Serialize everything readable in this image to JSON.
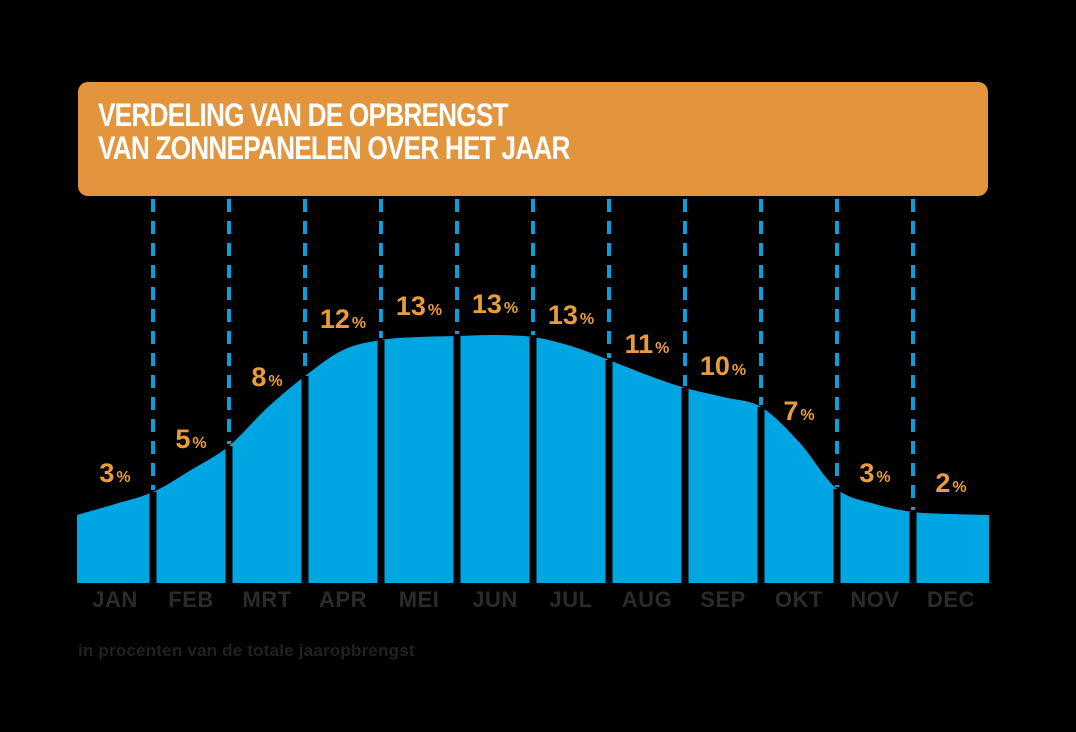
{
  "header": {
    "title_line1": "VERDELING VAN DE OPBRENGST",
    "title_line2": "VAN ZONNEPANELEN OVER HET JAAR"
  },
  "footnote": "in procenten van de totale jaaropbrengst",
  "colors": {
    "background": "#000000",
    "header_bg": "#E2953C",
    "title_text": "#FFFFFF",
    "area_blue": "#00A6E2",
    "dash_blue": "#0C9EDB",
    "label_orange": "#E99C3A",
    "month_text": "#2B2B28",
    "footnote_text": "#21211F"
  },
  "chart_data": {
    "type": "area",
    "title": "Verdeling van de opbrengst van zonnepanelen over het jaar",
    "categories": [
      "JAN",
      "FEB",
      "MRT",
      "APR",
      "MEI",
      "JUN",
      "JUL",
      "AUG",
      "SEP",
      "OKT",
      "NOV",
      "DEC"
    ],
    "values": [
      3,
      5,
      8,
      12,
      13,
      13,
      13,
      11,
      10,
      7,
      3,
      2
    ],
    "value_labels": [
      "3%",
      "5%",
      "8%",
      "12%",
      "13%",
      "13%",
      "13%",
      "11%",
      "10%",
      "7%",
      "3%",
      "2%"
    ],
    "unit": "%",
    "xlabel": "",
    "ylabel": "",
    "ylim": [
      0,
      13
    ],
    "grid": false,
    "legend": false,
    "render": {
      "left_x": 77,
      "right_x": 989,
      "baseline_y": 583,
      "dash_top_y": 199,
      "dash_width": 4,
      "dash_pattern": [
        13,
        9
      ],
      "gap_width": 7,
      "month_label_baseline_y": 607,
      "month_font_size": 22,
      "percent_font_size": 27,
      "percent_sign_font_size": 16,
      "percent_label_offset": 22,
      "curve_points": [
        [
          77,
          515
        ],
        [
          115,
          504
        ],
        [
          153,
          492
        ],
        [
          191,
          470
        ],
        [
          229,
          446
        ],
        [
          267,
          408
        ],
        [
          305,
          376
        ],
        [
          343,
          350
        ],
        [
          381,
          340
        ],
        [
          419,
          337
        ],
        [
          457,
          336
        ],
        [
          495,
          335
        ],
        [
          533,
          337
        ],
        [
          571,
          346
        ],
        [
          609,
          360
        ],
        [
          647,
          375
        ],
        [
          685,
          388
        ],
        [
          723,
          397
        ],
        [
          761,
          407
        ],
        [
          799,
          442
        ],
        [
          837,
          489
        ],
        [
          875,
          504
        ],
        [
          913,
          512
        ],
        [
          951,
          514
        ],
        [
          989,
          515
        ]
      ]
    }
  }
}
